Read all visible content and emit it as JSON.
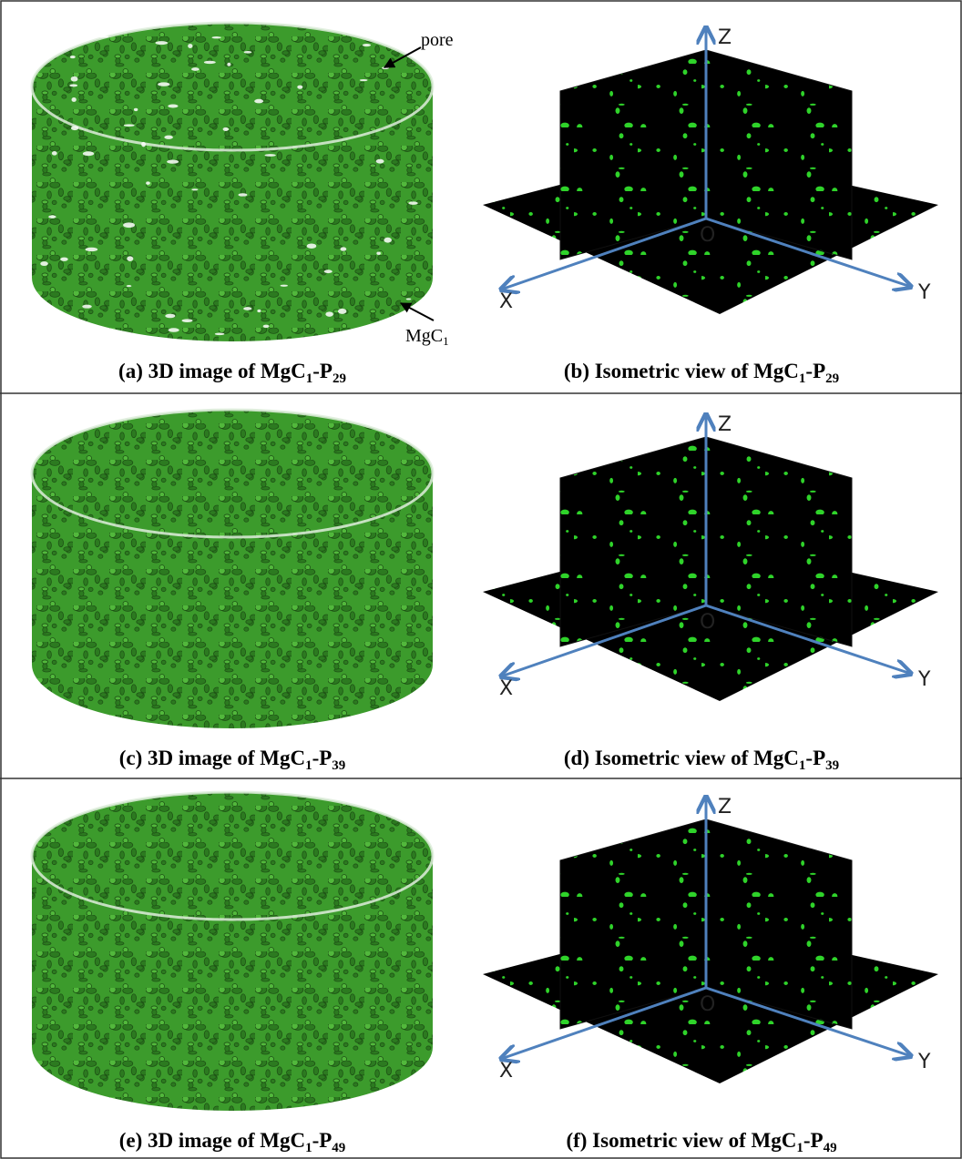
{
  "panels": [
    {
      "left": {
        "prefix": "(a) 3D image of MgC",
        "sub1": "1",
        "mid": "-P",
        "sub2": "29"
      },
      "right": {
        "prefix": "(b) Isometric view of MgC",
        "sub1": "1",
        "mid": "-P",
        "sub2": "29"
      },
      "axes": {
        "z": "Z",
        "o": "O",
        "x": "X",
        "y": "Y"
      }
    },
    {
      "left": {
        "prefix": "(c) 3D image of MgC",
        "sub1": "1",
        "mid": "-P",
        "sub2": "39"
      },
      "right": {
        "prefix": "(d) Isometric view of MgC",
        "sub1": "1",
        "mid": "-P",
        "sub2": "39"
      },
      "axes": {
        "z": "Z",
        "o": "O",
        "x": "X",
        "y": "Y"
      }
    },
    {
      "left": {
        "prefix": "(e) 3D image of MgC",
        "sub1": "1",
        "mid": "-P",
        "sub2": "49"
      },
      "right": {
        "prefix": "(f) Isometric view of MgC",
        "sub1": "1",
        "mid": "-P",
        "sub2": "49"
      },
      "axes": {
        "z": "Z",
        "o": "O",
        "x": "X",
        "y": "Y"
      }
    }
  ],
  "annotations": {
    "pore": "pore",
    "mgc": {
      "text": "MgC",
      "sub": "1"
    }
  }
}
